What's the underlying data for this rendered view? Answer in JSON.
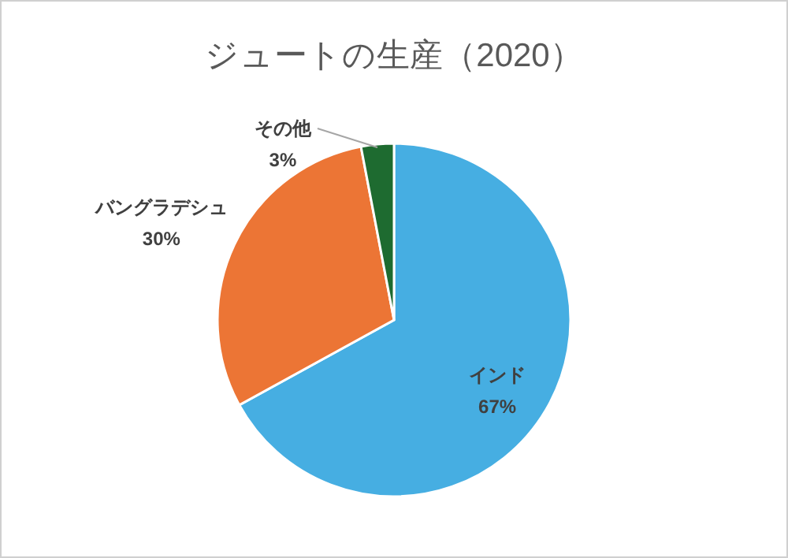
{
  "chart_data": {
    "type": "pie",
    "title": "ジュートの生産（2020）",
    "categories": [
      "インド",
      "バングラデシュ",
      "その他"
    ],
    "values": [
      67,
      30,
      3
    ],
    "value_labels": [
      "67%",
      "30%",
      "3%"
    ],
    "colors": [
      "#46aee2",
      "#ec7535",
      "#1e6b30"
    ]
  }
}
